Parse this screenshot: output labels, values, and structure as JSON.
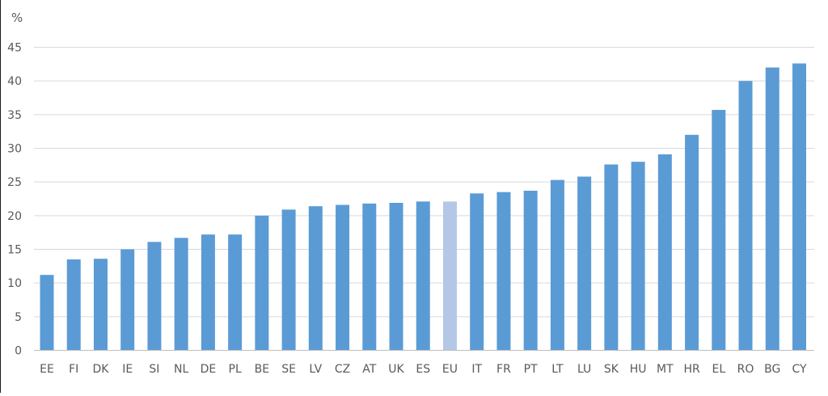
{
  "chart_data": {
    "type": "bar",
    "ylabel": "%",
    "ylim": [
      0,
      45
    ],
    "yticks": [
      0,
      5,
      10,
      15,
      20,
      25,
      30,
      35,
      40,
      45
    ],
    "grid": true,
    "categories": [
      "EE",
      "FI",
      "DK",
      "IE",
      "SI",
      "NL",
      "DE",
      "PL",
      "BE",
      "SE",
      "LV",
      "CZ",
      "AT",
      "UK",
      "ES",
      "EU",
      "IT",
      "FR",
      "PT",
      "LT",
      "LU",
      "SK",
      "HU",
      "MT",
      "HR",
      "EL",
      "RO",
      "BG",
      "CY"
    ],
    "values": [
      11.2,
      13.5,
      13.6,
      15.0,
      16.1,
      16.7,
      17.2,
      17.2,
      20.0,
      20.9,
      21.4,
      21.6,
      21.8,
      21.9,
      22.1,
      22.1,
      23.3,
      23.5,
      23.7,
      25.3,
      25.8,
      27.6,
      28.0,
      29.1,
      32.0,
      35.7,
      40.0,
      42.0,
      42.6
    ],
    "highlight_category": "EU",
    "colors": {
      "bar": "#5b9bd5",
      "highlight": "#b4c7e7",
      "grid": "#d9d9d9",
      "axis": "#bfbfbf",
      "text": "#595959"
    }
  }
}
